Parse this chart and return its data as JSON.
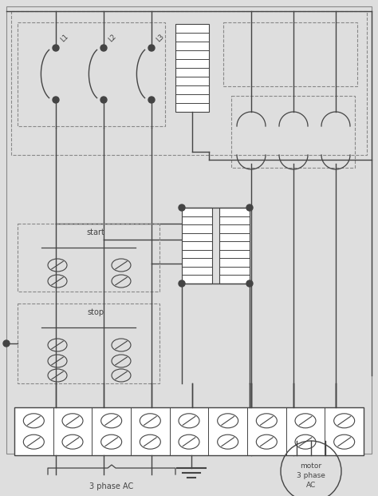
{
  "bg_color": "#dedede",
  "line_color": "#444444",
  "dashed_color": "#888888",
  "labels": {
    "L1": "L1",
    "L2": "L2",
    "L3": "L3",
    "start": "start",
    "stop": "stop",
    "phase_ac": "3 phase AC",
    "motor": "motor\n3 phase\nAC"
  },
  "figsize": [
    4.74,
    6.21
  ],
  "dpi": 100
}
